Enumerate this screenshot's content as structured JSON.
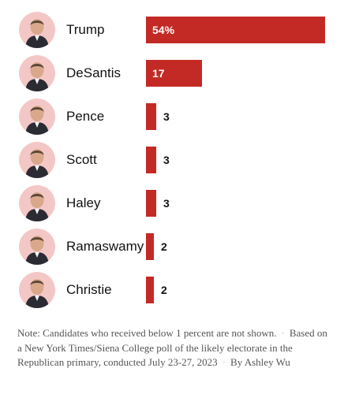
{
  "colors": {
    "bar": "#c42a25",
    "avatar_bg": "#f4c7c7",
    "inside_label": "#ffffff",
    "outside_label": "#121212"
  },
  "chart_data": {
    "type": "bar",
    "orientation": "horizontal",
    "categories": [
      "Trump",
      "DeSantis",
      "Pence",
      "Scott",
      "Haley",
      "Ramaswamy",
      "Christie"
    ],
    "values": [
      54,
      17,
      3,
      3,
      3,
      2,
      2
    ],
    "value_labels": [
      "54%",
      "17",
      "3",
      "3",
      "3",
      "2",
      "2"
    ],
    "unit": "%",
    "xlim": [
      0,
      54
    ],
    "grid": false,
    "legend": "none",
    "category_icons": [
      "portrait-icon",
      "portrait-icon",
      "portrait-icon",
      "portrait-icon",
      "portrait-icon",
      "portrait-icon",
      "portrait-icon"
    ]
  },
  "note": {
    "text_1": "Note: Candidates who received below 1 percent are not shown.",
    "separator": "·",
    "text_2": "Based on a New York Times/Siena College poll of the likely electorate in the Republican primary, conducted July 23-27, 2023",
    "byline": "By Ashley Wu"
  }
}
